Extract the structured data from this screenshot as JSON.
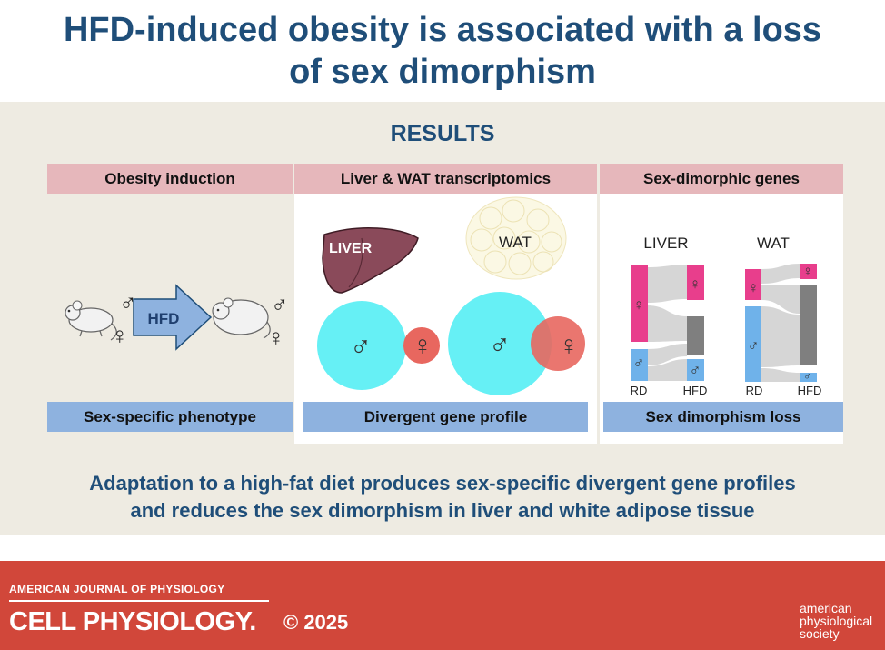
{
  "title": {
    "line1": "HFD-induced obesity is associated with a loss",
    "line2": "of sex dimorphism"
  },
  "results_label": "RESULTS",
  "panels": [
    {
      "header": "Obesity induction",
      "footer": "Sex-specific phenotype"
    },
    {
      "header": "Liver & WAT transcriptomics",
      "footer": "Divergent gene profile"
    },
    {
      "header": "Sex-dimorphic genes",
      "footer": "Sex dimorphism loss"
    }
  ],
  "obesity": {
    "arrow_label": "HFD",
    "male_symbol": "♂",
    "female_symbol": "♀"
  },
  "transcriptomics": {
    "liver_label": "LIVER",
    "wat_label": "WAT",
    "male_symbol": "♂",
    "female_symbol": "♀"
  },
  "sankey": {
    "liver_title": "LIVER",
    "wat_title": "WAT",
    "rd_label": "RD",
    "hfd_label": "HFD",
    "male_symbol": "♂",
    "female_symbol": "♀"
  },
  "summary": {
    "line1": "Adaptation to a high-fat diet produces sex-specific divergent gene profiles",
    "line2": "and reduces the sex dimorphism in liver and white adipose tissue"
  },
  "footer": {
    "journal_small": "AMERICAN JOURNAL OF PHYSIOLOGY",
    "journal_big": "CELL PHYSIOLOGY.",
    "copyright": "© 2025",
    "society": [
      "american",
      "physiological",
      "society"
    ]
  },
  "colors": {
    "title": "#1f4e79",
    "results_bg": "#eeebe2",
    "header_pink": "#e6b7bb",
    "footer_blue": "#8eb2df",
    "male_circle": "#66f0f5",
    "female_circle": "#e8675f",
    "female_bar": "#e83e8c",
    "male_bar": "#6fb2ea",
    "gray_bar": "#7f7f7f",
    "red_footer": "#d1473a"
  }
}
